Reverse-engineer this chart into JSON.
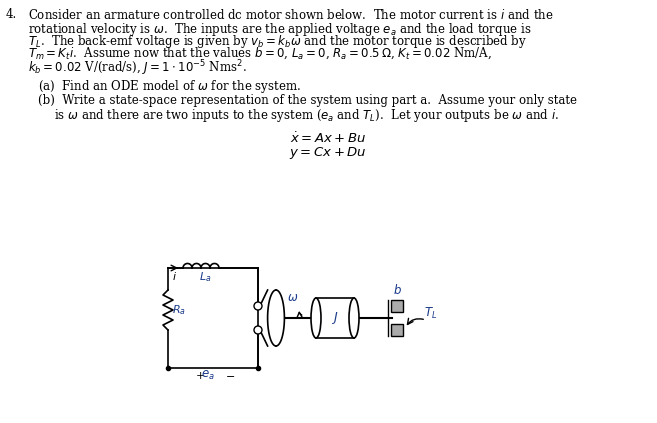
{
  "bg_color": "#ffffff",
  "text_color": "#000000",
  "blue_color": "#1a3a8a",
  "figsize": [
    6.57,
    4.23
  ],
  "dpi": 100,
  "fontsize_main": 8.5,
  "fontsize_label": 8.0,
  "lh": 12.5
}
